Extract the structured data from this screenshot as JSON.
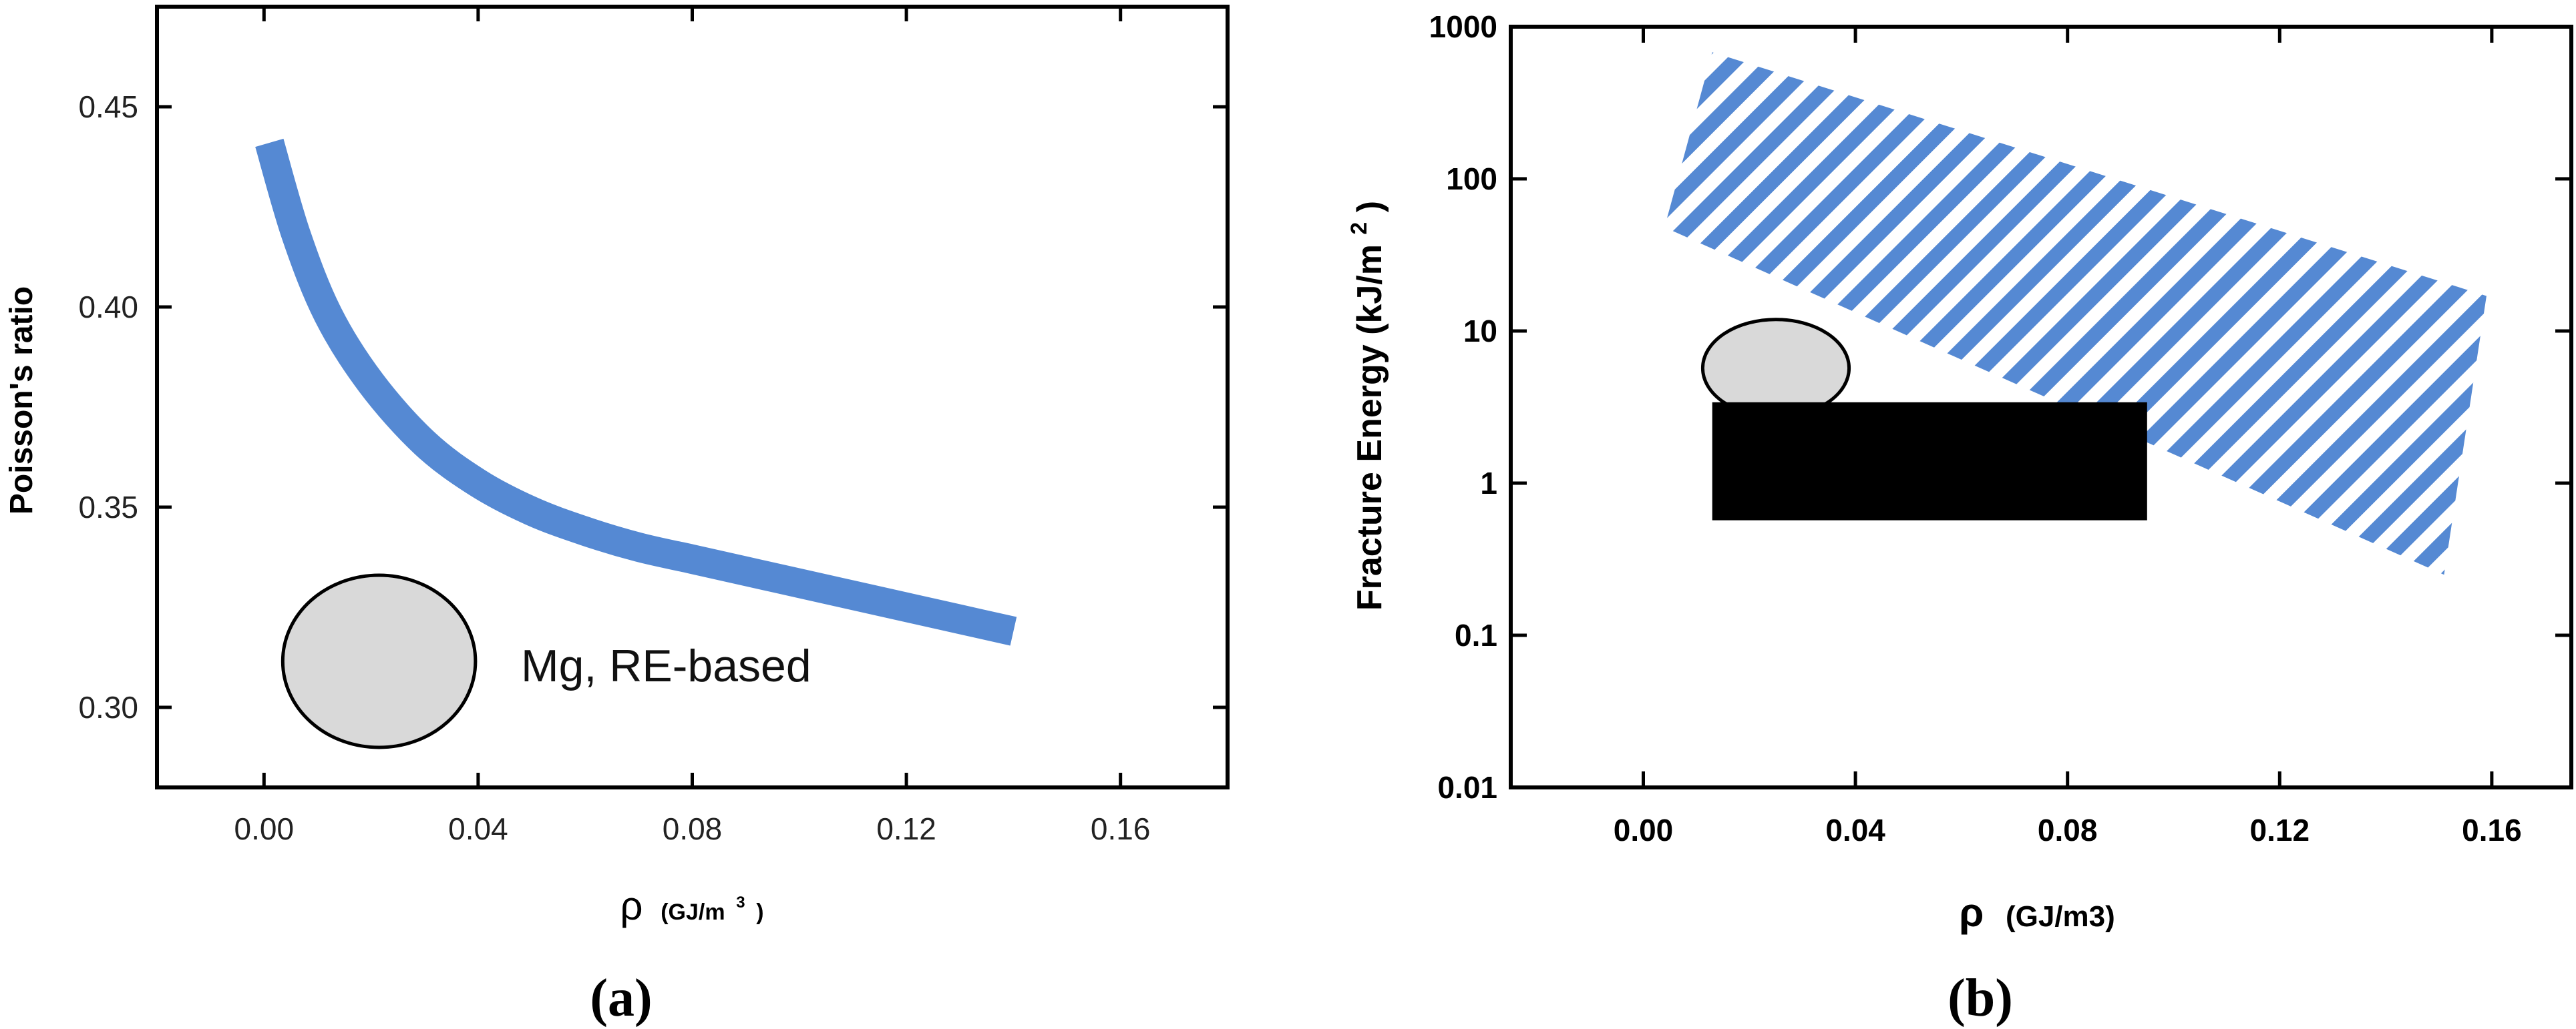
{
  "chart_data": [
    {
      "panel": "(a)",
      "type": "line",
      "ylabel": "Poisson's ratio",
      "xlabel_symbol": "ρ",
      "xlabel_unit": "(GJ/m",
      "xlabel_unit_sup": "3",
      "xlabel_unit_close": ")",
      "xlim": [
        -0.02,
        0.18
      ],
      "ylim": [
        0.28,
        0.475
      ],
      "xticks": [
        0.0,
        0.04,
        0.08,
        0.12,
        0.16
      ],
      "xtick_labels": [
        "0.00",
        "0.04",
        "0.08",
        "0.12",
        "0.16"
      ],
      "yticks": [
        0.3,
        0.35,
        0.4,
        0.45
      ],
      "ytick_labels": [
        "0.30",
        "0.35",
        "0.40",
        "0.45"
      ],
      "series": [
        {
          "color": "#5589D3",
          "x": [
            0.001,
            0.006,
            0.012,
            0.02,
            0.03,
            0.04,
            0.05,
            0.06,
            0.07,
            0.08,
            0.09,
            0.1,
            0.11,
            0.12,
            0.13,
            0.14
          ],
          "y": [
            0.441,
            0.418,
            0.398,
            0.381,
            0.366,
            0.356,
            0.349,
            0.344,
            0.34,
            0.337,
            0.334,
            0.331,
            0.328,
            0.325,
            0.322,
            0.319
          ]
        }
      ],
      "annotations": [
        {
          "text": "Mg, RE-based",
          "x": 0.048,
          "y": 0.3105
        }
      ],
      "ellipse": {
        "cx": 0.0215,
        "cy": 0.3115,
        "rx": 0.018,
        "ry": 0.0215,
        "fill": "#D9D9D9"
      }
    },
    {
      "panel": "(b)",
      "type": "area",
      "ylabel_main": "Fracture Energy (kJ/m",
      "ylabel_sup": "2",
      "ylabel_close": ")",
      "xlabel_symbol": "ρ",
      "xlabel_unit": "(GJ/m3)",
      "xlim": [
        -0.025,
        0.175
      ],
      "ylim_log10": [
        -2,
        3
      ],
      "log_y": true,
      "xticks": [
        0.0,
        0.04,
        0.08,
        0.12,
        0.16
      ],
      "xtick_labels": [
        "0.00",
        "0.04",
        "0.08",
        "0.12",
        "0.16"
      ],
      "yticks": [
        0.01,
        0.1,
        1,
        10,
        100,
        1000
      ],
      "ytick_labels": [
        "0.01",
        "0.1",
        "1",
        "10",
        "100",
        "1000"
      ],
      "hatched_band": {
        "color": "#5589D3",
        "corners": [
          [
            0.013,
            680
          ],
          [
            0.159,
            17
          ],
          [
            0.151,
            0.25
          ],
          [
            0.004,
            48
          ]
        ]
      },
      "black_rect": {
        "x0": 0.013,
        "x1": 0.095,
        "y0": 0.57,
        "y1": 3.4,
        "fill": "#000000"
      },
      "ellipse": {
        "cx": 0.025,
        "cy": 5.7,
        "rx": 0.0138,
        "ry_log10": 0.32,
        "fill": "#D9D9D9"
      }
    }
  ]
}
